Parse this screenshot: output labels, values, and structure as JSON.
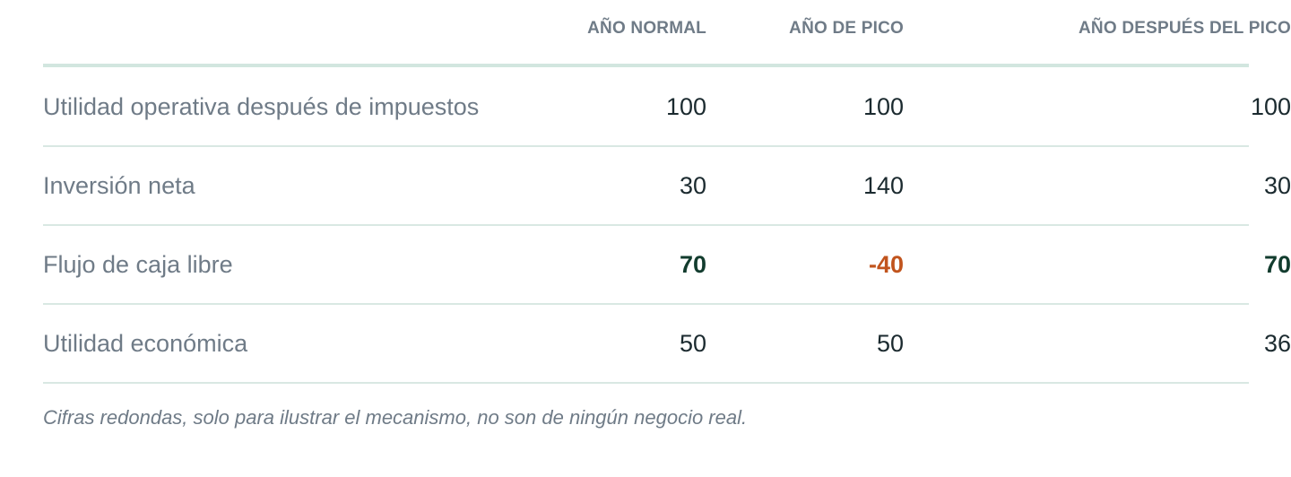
{
  "columns": [
    "AÑO NORMAL",
    "AÑO DE PICO",
    "AÑO DESPUÉS DEL PICO"
  ],
  "rows": [
    {
      "label": "Utilidad operativa después de impuestos",
      "values": [
        "100",
        "100",
        "100"
      ]
    },
    {
      "label": "Inversión neta",
      "values": [
        "30",
        "140",
        "30"
      ]
    },
    {
      "label": "Flujo de caja libre",
      "values": [
        "70",
        "-40",
        "70"
      ]
    },
    {
      "label": "Utilidad económica",
      "values": [
        "50",
        "50",
        "36"
      ]
    }
  ],
  "note": "Cifras redondas, solo para ilustrar el mecanismo, no son de ningún negocio real.",
  "colors": {
    "positive_highlight": "#123c2e",
    "negative_highlight": "#c1541d",
    "muted_text": "#6f7b87",
    "divider": "#d2e6df"
  }
}
